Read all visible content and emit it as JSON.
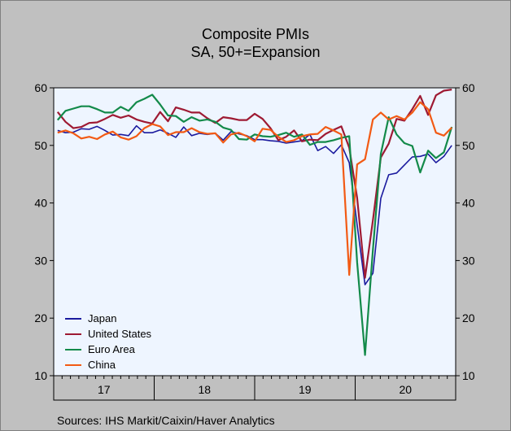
{
  "title": "Composite PMIs",
  "subtitle": "SA, 50+=Expansion",
  "source": "Sources:   IHS Markit/Caixin/Haver Analytics",
  "colors": {
    "background": "#c0c0c0",
    "plot_background": "#eef5ff",
    "Japan": "#1a1a9e",
    "United States": "#9e1a33",
    "Euro Area": "#138a4a",
    "China": "#f25a14"
  },
  "chart_data": {
    "type": "line",
    "title": "Composite PMIs",
    "subtitle": "SA, 50+=Expansion",
    "ylim": [
      10,
      60
    ],
    "y_ticks": [
      10,
      20,
      30,
      40,
      50,
      60
    ],
    "y_axis": "both sides",
    "x_labels": [
      "17",
      "18",
      "19",
      "20"
    ],
    "x_start": "2017-01",
    "x_end": "2020-12",
    "grid": false,
    "legend_placement": "bottom-left",
    "series": [
      {
        "name": "Japan",
        "values": [
          52.6,
          52.2,
          52.3,
          52.9,
          52.8,
          53.3,
          52.6,
          51.8,
          51.9,
          51.7,
          53.4,
          52.2,
          52.2,
          52.7,
          52.1,
          51.4,
          53.2,
          51.7,
          52.1,
          51.9,
          52.1,
          50.9,
          52.4,
          52.0,
          51.7,
          51.0,
          51.0,
          50.8,
          50.7,
          50.4,
          50.6,
          50.8,
          51.9,
          49.1,
          49.8,
          48.6,
          50.1,
          47.0,
          36.2,
          25.8,
          27.8,
          40.8,
          44.9,
          45.2,
          46.6,
          48.0,
          48.1,
          48.5
        ]
      },
      {
        "name": "United States",
        "values": [
          55.8,
          54.1,
          53.0,
          53.2,
          53.9,
          54.0,
          54.6,
          55.3,
          54.8,
          55.2,
          54.5,
          54.1,
          53.8,
          55.8,
          54.2,
          56.6,
          56.2,
          55.7,
          55.7,
          54.7,
          53.9,
          54.9,
          54.7,
          54.4,
          54.4,
          55.5,
          54.6,
          53.0,
          50.9,
          51.5,
          52.6,
          50.7,
          51.0,
          50.9,
          52.0,
          52.7,
          53.3,
          49.6,
          40.9,
          27.0,
          37.0,
          47.9,
          50.3,
          54.6,
          54.3,
          56.3,
          58.6,
          55.3
        ]
      },
      {
        "name": "Euro Area",
        "values": [
          54.4,
          56.0,
          56.4,
          56.8,
          56.8,
          56.3,
          55.7,
          55.7,
          56.7,
          56.0,
          57.5,
          58.1,
          58.8,
          57.1,
          55.2,
          55.1,
          54.1,
          54.9,
          54.3,
          54.5,
          54.1,
          53.1,
          52.7,
          51.1,
          51.0,
          51.9,
          51.6,
          51.5,
          51.8,
          52.2,
          51.5,
          51.9,
          50.1,
          50.6,
          50.6,
          50.9,
          51.3,
          51.6,
          29.7,
          13.6,
          31.9,
          48.5,
          54.9,
          51.9,
          50.4,
          49.9,
          45.3,
          49.1
        ]
      },
      {
        "name": "China",
        "values": [
          52.2,
          52.6,
          52.1,
          51.2,
          51.5,
          51.1,
          51.9,
          52.4,
          51.4,
          51.0,
          51.6,
          53.0,
          53.7,
          53.3,
          51.8,
          52.3,
          52.3,
          53.0,
          52.3,
          52.0,
          52.1,
          50.5,
          51.9,
          52.2,
          51.6,
          50.7,
          52.9,
          52.7,
          51.5,
          50.6,
          50.9,
          51.6,
          51.9,
          52.0,
          53.2,
          52.6,
          51.9,
          27.5,
          46.7,
          47.6,
          54.5,
          55.7,
          54.5,
          55.1,
          54.5,
          55.7,
          57.5,
          56.3
        ]
      }
    ],
    "extra_tail": {
      "Japan": [
        47.0,
        48.1,
        50.0
      ],
      "United States": [
        58.7,
        59.5,
        59.7
      ],
      "Euro Area": [
        47.8,
        48.8,
        53.2
      ],
      "China": [
        52.2,
        51.7,
        53.1
      ]
    }
  }
}
